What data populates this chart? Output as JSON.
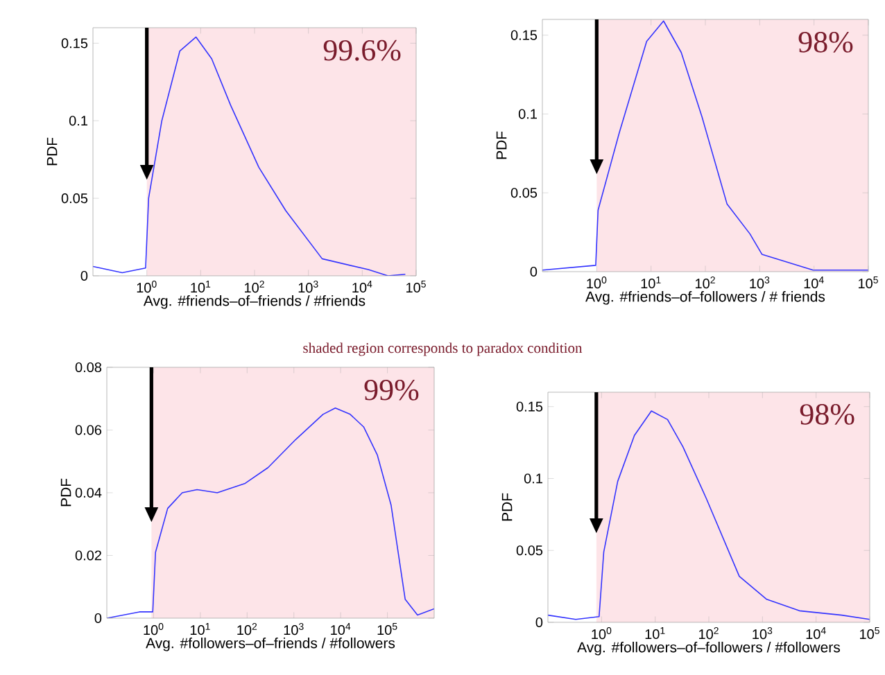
{
  "chart_data": [
    {
      "type": "line",
      "xlabel": "Avg. #friends–of–friends / #friends",
      "ylabel": "PDF",
      "log": "x",
      "xlim": [
        0.1,
        100000
      ],
      "ylim": [
        0,
        0.16
      ],
      "xticks": [
        {
          "value": 1,
          "label": "10$^{0}$"
        },
        {
          "value": 10,
          "label": "10$^{1}$"
        },
        {
          "value": 100,
          "label": "10$^{2}$"
        },
        {
          "value": 1000,
          "label": "10$^{3}$"
        },
        {
          "value": 10000,
          "label": "10$^{4}$"
        },
        {
          "value": 100000,
          "label": "10$^{5}$"
        }
      ],
      "yticks": [
        0,
        0.05,
        0.1,
        0.15
      ],
      "bands": [
        {
          "axis": "x",
          "from": 1,
          "to": 100000,
          "label": "99.6%",
          "color": "#fde4e8"
        }
      ],
      "annotations": [
        "shaded region corresponds to paradox condition"
      ],
      "series": [
        {
          "color": "#3333ff",
          "x": [
            0.1,
            0.35,
            0.95,
            1.08,
            1.9,
            4.1,
            8.2,
            16,
            36,
            120,
            380,
            1800,
            13000,
            30000,
            63000
          ],
          "values": [
            0.006,
            0.002,
            0.005,
            0.05,
            0.1,
            0.145,
            0.154,
            0.14,
            0.11,
            0.07,
            0.042,
            0.011,
            0.004,
            0.0,
            0.001
          ]
        }
      ]
    },
    {
      "type": "line",
      "xlabel": "Avg. #friends–of–followers / # friends",
      "ylabel": "PDF",
      "log": "x",
      "xlim": [
        0.1,
        100000
      ],
      "ylim": [
        0,
        0.16
      ],
      "xticks": [
        {
          "value": 1,
          "label": "10$^{0}$"
        },
        {
          "value": 10,
          "label": "10$^{1}$"
        },
        {
          "value": 100,
          "label": "10$^{2}$"
        },
        {
          "value": 1000,
          "label": "10$^{3}$"
        },
        {
          "value": 10000,
          "label": "10$^{4}$"
        },
        {
          "value": 100000,
          "label": "10$^{5}$"
        }
      ],
      "yticks": [
        0,
        0.05,
        0.1,
        0.15
      ],
      "bands": [
        {
          "axis": "x",
          "from": 1,
          "to": 100000,
          "label": "98%",
          "color": "#fde4e8"
        }
      ],
      "series": [
        {
          "color": "#3333ff",
          "x": [
            0.1,
            0.96,
            1.06,
            2.6,
            8.3,
            17,
            36,
            87,
            250,
            660,
            1100,
            9600,
            100000
          ],
          "values": [
            0.001,
            0.004,
            0.039,
            0.088,
            0.146,
            0.159,
            0.139,
            0.098,
            0.043,
            0.024,
            0.011,
            0.001,
            0.001
          ]
        }
      ]
    },
    {
      "type": "line",
      "xlabel": "Avg. #followers–of–friends / #followers",
      "ylabel": "PDF",
      "log": "x",
      "xlim": [
        0.1,
        1000000
      ],
      "ylim": [
        0,
        0.08
      ],
      "xticks": [
        {
          "value": 1,
          "label": "10$^{0}$"
        },
        {
          "value": 10,
          "label": "10$^{1}$"
        },
        {
          "value": 100,
          "label": "10$^{2}$"
        },
        {
          "value": 1000,
          "label": "10$^{3}$"
        },
        {
          "value": 10000,
          "label": "10$^{4}$"
        },
        {
          "value": 100000,
          "label": "10$^{5}$"
        }
      ],
      "yticks": [
        0,
        0.02,
        0.04,
        0.06,
        0.08
      ],
      "bands": [
        {
          "axis": "x",
          "from": 0.9,
          "to": 1000000,
          "label": "99%",
          "color": "#fde4e8"
        }
      ],
      "series": [
        {
          "color": "#3333ff",
          "x": [
            0.1,
            0.5,
            0.96,
            1.1,
            2,
            4.1,
            8.5,
            23,
            91,
            280,
            1100,
            4200,
            7700,
            16000,
            31000,
            61000,
            120000,
            240000,
            440000,
            1000000
          ],
          "values": [
            0.0,
            0.002,
            0.002,
            0.021,
            0.035,
            0.04,
            0.041,
            0.04,
            0.043,
            0.048,
            0.057,
            0.065,
            0.067,
            0.065,
            0.061,
            0.052,
            0.036,
            0.006,
            0.001,
            0.003
          ]
        }
      ]
    },
    {
      "type": "line",
      "xlabel": "Avg. #followers–of–followers / #followers",
      "ylabel": "PDF",
      "log": "x",
      "xlim": [
        0.1,
        100000
      ],
      "ylim": [
        0,
        0.16
      ],
      "xticks": [
        {
          "value": 1,
          "label": "10$^{0}$"
        },
        {
          "value": 10,
          "label": "10$^{1}$"
        },
        {
          "value": 100,
          "label": "10$^{2}$"
        },
        {
          "value": 1000,
          "label": "10$^{3}$"
        },
        {
          "value": 10000,
          "label": "10$^{4}$"
        },
        {
          "value": 100000,
          "label": "10$^{5}$"
        }
      ],
      "yticks": [
        0,
        0.05,
        0.1,
        0.15
      ],
      "bands": [
        {
          "axis": "x",
          "from": 0.8,
          "to": 100000,
          "label": "98%",
          "color": "#fde4e8"
        }
      ],
      "series": [
        {
          "color": "#3333ff",
          "x": [
            0.1,
            0.33,
            0.9,
            1.1,
            2.0,
            4.1,
            8.5,
            17,
            33,
            90,
            370,
            1200,
            4900,
            30000,
            100000
          ],
          "values": [
            0.005,
            0.002,
            0.004,
            0.049,
            0.098,
            0.13,
            0.147,
            0.141,
            0.122,
            0.086,
            0.032,
            0.016,
            0.008,
            0.005,
            0.002
          ]
        }
      ]
    }
  ]
}
